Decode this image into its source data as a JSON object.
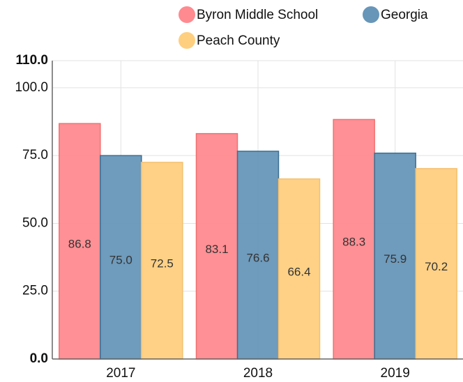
{
  "chart_data": {
    "type": "bar",
    "categories": [
      "2017",
      "2018",
      "2019"
    ],
    "series": [
      {
        "name": "Byron Middle School",
        "color": "#ff8a8f",
        "values": [
          86.8,
          83.1,
          88.3
        ],
        "value_labels": [
          "86.8",
          "83.1",
          "88.3"
        ]
      },
      {
        "name": "Georgia",
        "color": "#6796b8",
        "values": [
          75.0,
          76.6,
          75.9
        ],
        "value_labels": [
          "75.0",
          "76.6",
          "75.9"
        ]
      },
      {
        "name": "Peach County",
        "color": "#fecf7f",
        "values": [
          72.5,
          66.4,
          70.2
        ],
        "value_labels": [
          "72.5",
          "66.4",
          "70.2"
        ]
      }
    ],
    "ylim": [
      0,
      110
    ],
    "yticks": [
      {
        "value": 0,
        "label": "0.0"
      },
      {
        "value": 25,
        "label": "25.0"
      },
      {
        "value": 50,
        "label": "50.0"
      },
      {
        "value": 75,
        "label": "75.0"
      },
      {
        "value": 100,
        "label": "100.0"
      },
      {
        "value": 110,
        "label": "110.0"
      }
    ],
    "grid": true
  }
}
